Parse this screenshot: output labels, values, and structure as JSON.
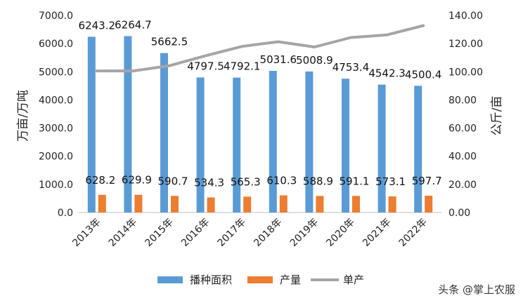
{
  "chart_data": {
    "type": "bar",
    "categories": [
      "2013年",
      "2014年",
      "2015年",
      "2016年",
      "2017年",
      "2018年",
      "2019年",
      "2020年",
      "2021年",
      "2022年"
    ],
    "series": [
      {
        "name": "播种面积",
        "type": "bar",
        "axis": "left",
        "color": "#5b9bd5",
        "values": [
          6243.2,
          6264.7,
          5662.5,
          4797.5,
          4792.1,
          5031.6,
          5008.9,
          4753.4,
          4542.3,
          4500.4
        ],
        "labels": [
          "6243.2",
          "6264.7",
          "5662.5",
          "4797.5",
          "4792.1",
          "5031.6",
          "5008.9",
          "4753.4",
          "4542.3",
          "4500.4"
        ]
      },
      {
        "name": "产量",
        "type": "bar",
        "axis": "left",
        "color": "#ed7d31",
        "values": [
          628.2,
          629.9,
          590.7,
          534.3,
          565.3,
          610.3,
          588.9,
          591.1,
          573.1,
          597.7
        ],
        "labels": [
          "628.2",
          "629.9",
          "590.7",
          "534.3",
          "565.3",
          "610.3",
          "588.9",
          "591.1",
          "573.1",
          "597.7"
        ]
      },
      {
        "name": "单产",
        "type": "line",
        "axis": "right",
        "color": "#a5a5a5",
        "values": [
          100.6,
          100.6,
          104.3,
          111.4,
          118.0,
          121.3,
          117.6,
          124.3,
          126.2,
          132.8
        ]
      }
    ],
    "ylabel_left": "万亩/万吨",
    "ylabel_right": "公斤/亩",
    "ylim_left": [
      0,
      7000
    ],
    "ylim_right": [
      0,
      140
    ],
    "yticks_left": [
      "0.0",
      "1000.0",
      "2000.0",
      "3000.0",
      "4000.0",
      "5000.0",
      "6000.0",
      "7000.0"
    ],
    "yticks_right": [
      "0.00",
      "20.00",
      "40.00",
      "60.00",
      "80.00",
      "100.00",
      "120.00",
      "140.00"
    ],
    "grid": false,
    "legend_position": "bottom"
  },
  "watermark": "头条 @掌上农服"
}
